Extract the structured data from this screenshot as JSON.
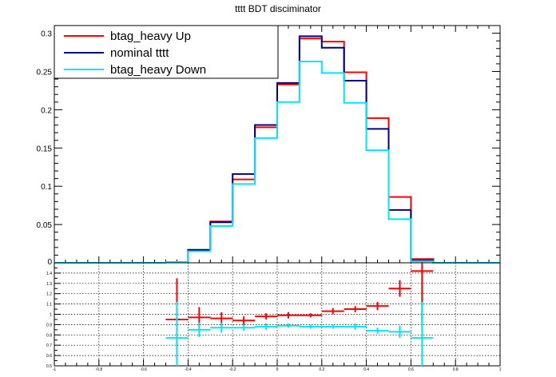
{
  "chart_data": [
    {
      "type": "line",
      "title": "tttt BDT disciminator",
      "xlabel": "",
      "ylabel": "",
      "xlim": [
        -1,
        1
      ],
      "ylim": [
        0,
        0.31
      ],
      "y_ticks": [
        "0.05",
        "0.1",
        "0.15",
        "0.2",
        "0.25",
        "0.3"
      ],
      "y_zero_label": "0",
      "legend_position": "top-left",
      "bin_edges": [
        -1.0,
        -0.9,
        -0.8,
        -0.7,
        -0.6,
        -0.5,
        -0.4,
        -0.3,
        -0.2,
        -0.1,
        0.0,
        0.1,
        0.2,
        0.3,
        0.4,
        0.5,
        0.6,
        0.7,
        0.8,
        0.9,
        1.0
      ],
      "series": [
        {
          "name": "btag_heavy Up",
          "color": "#ff0000",
          "values": [
            0,
            0,
            0,
            0,
            0,
            0.001,
            0.016,
            0.054,
            0.109,
            0.177,
            0.233,
            0.293,
            0.289,
            0.249,
            0.189,
            0.086,
            0.005,
            0,
            0,
            0
          ]
        },
        {
          "name": "nominal tttt",
          "color": "#000080",
          "values": [
            0,
            0,
            0,
            0,
            0,
            0.001,
            0.017,
            0.053,
            0.116,
            0.18,
            0.235,
            0.296,
            0.281,
            0.238,
            0.175,
            0.069,
            0.003,
            0,
            0,
            0
          ]
        },
        {
          "name": "btag_heavy Down",
          "color": "#00e5ff",
          "values": [
            0,
            0,
            0,
            0,
            0,
            0.001,
            0.015,
            0.048,
            0.103,
            0.163,
            0.21,
            0.263,
            0.248,
            0.209,
            0.147,
            0.057,
            0.002,
            0,
            0,
            0
          ]
        }
      ]
    },
    {
      "type": "scatter",
      "title": "",
      "xlabel": "",
      "ylabel": "",
      "xlim": [
        -1,
        1
      ],
      "ylim": [
        0.5,
        1.5
      ],
      "x_ticks": [
        "-1",
        "-0.8",
        "-0.6",
        "-0.4",
        "-0.2",
        "0",
        "0.2",
        "0.4",
        "0.6",
        "0.8",
        "1"
      ],
      "y_ticks": [
        "0.5",
        "0.6",
        "0.7",
        "0.8",
        "0.9",
        "1",
        "1.1",
        "1.2",
        "1.3",
        "1.4"
      ],
      "grid": true,
      "series": [
        {
          "color": "#ff0000",
          "points": [
            {
              "x": -0.45,
              "y": 0.95,
              "err": 0.4
            },
            {
              "x": -0.35,
              "y": 0.97,
              "err": 0.1
            },
            {
              "x": -0.25,
              "y": 0.96,
              "err": 0.06
            },
            {
              "x": -0.15,
              "y": 0.94,
              "err": 0.04
            },
            {
              "x": -0.05,
              "y": 0.98,
              "err": 0.03
            },
            {
              "x": 0.05,
              "y": 0.99,
              "err": 0.03
            },
            {
              "x": 0.15,
              "y": 0.99,
              "err": 0.02
            },
            {
              "x": 0.25,
              "y": 1.03,
              "err": 0.03
            },
            {
              "x": 0.35,
              "y": 1.05,
              "err": 0.03
            },
            {
              "x": 0.45,
              "y": 1.08,
              "err": 0.04
            },
            {
              "x": 0.55,
              "y": 1.25,
              "err": 0.08
            },
            {
              "x": 0.65,
              "y": 1.42,
              "err": 0.5
            }
          ]
        },
        {
          "color": "#00e5ff",
          "points": [
            {
              "x": -0.45,
              "y": 0.77,
              "err": 0.35
            },
            {
              "x": -0.35,
              "y": 0.85,
              "err": 0.07
            },
            {
              "x": -0.25,
              "y": 0.87,
              "err": 0.05
            },
            {
              "x": -0.15,
              "y": 0.87,
              "err": 0.03
            },
            {
              "x": -0.05,
              "y": 0.88,
              "err": 0.03
            },
            {
              "x": 0.05,
              "y": 0.89,
              "err": 0.02
            },
            {
              "x": 0.15,
              "y": 0.88,
              "err": 0.02
            },
            {
              "x": 0.25,
              "y": 0.88,
              "err": 0.02
            },
            {
              "x": 0.35,
              "y": 0.88,
              "err": 0.03
            },
            {
              "x": 0.45,
              "y": 0.84,
              "err": 0.03
            },
            {
              "x": 0.55,
              "y": 0.83,
              "err": 0.06
            },
            {
              "x": 0.65,
              "y": 0.77,
              "err": 0.35
            }
          ]
        }
      ]
    }
  ]
}
